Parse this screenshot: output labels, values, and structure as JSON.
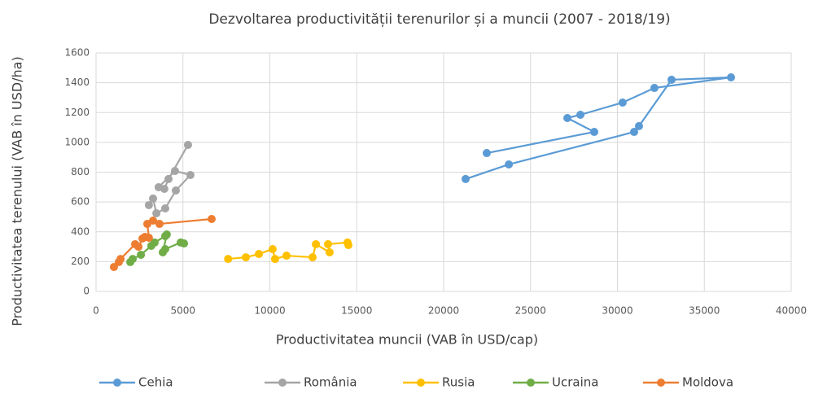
{
  "chart_data": {
    "type": "scatter",
    "title": "Dezvoltarea productivității terenurilor și a muncii (2007 - 2018/19)",
    "x_label": "Productivitatea muncii (VAB în USD/cap)",
    "y_label": "Productivitatea terenului (VAB în USD/ha)",
    "xlim": [
      0,
      40000
    ],
    "xticks": [
      0,
      5000,
      10000,
      15000,
      20000,
      25000,
      30000,
      35000,
      40000
    ],
    "ylim": [
      0,
      1600
    ],
    "yticks": [
      0,
      200,
      400,
      600,
      800,
      1000,
      1200,
      1400,
      1600
    ],
    "grid": true,
    "legend": "bottom",
    "series": [
      {
        "name": "Cehia",
        "color": "#5b9bd5",
        "x": [
          21265,
          23750,
          30960,
          31240,
          33115,
          36535,
          32130,
          30300,
          27870,
          27120,
          28665,
          22480
        ],
        "values": [
          754,
          852,
          1070,
          1109,
          1420,
          1436,
          1365,
          1267,
          1185,
          1163,
          1070,
          928
        ]
      },
      {
        "name": "România",
        "color": "#a5a5a5",
        "x": [
          3040,
          3280,
          3470,
          3980,
          4590,
          5430,
          4540,
          3600,
          3930,
          4170,
          5290
        ],
        "values": [
          579,
          623,
          524,
          557,
          677,
          781,
          808,
          699,
          688,
          754,
          983
        ]
      },
      {
        "name": "Rusia",
        "color": "#ffc000",
        "x": [
          7600,
          8620,
          9370,
          10160,
          10300,
          10960,
          12460,
          12650,
          13440,
          13350,
          14470,
          14520
        ],
        "values": [
          218,
          229,
          251,
          284,
          218,
          240,
          229,
          317,
          262,
          317,
          328,
          311
        ]
      },
      {
        "name": "Ucraina",
        "color": "#70ad47",
        "x": [
          1970,
          2110,
          2580,
          3180,
          3370,
          3980,
          4070,
          3840,
          3980,
          4870,
          5060
        ],
        "values": [
          197,
          218,
          246,
          306,
          328,
          371,
          382,
          262,
          284,
          328,
          322
        ]
      },
      {
        "name": "Moldova",
        "color": "#ed7d31",
        "x": [
          1030,
          1310,
          1410,
          2250,
          2440,
          2670,
          2810,
          3040,
          2950,
          3280,
          3650,
          6650
        ],
        "values": [
          164,
          197,
          218,
          317,
          300,
          355,
          366,
          360,
          453,
          475,
          453,
          486
        ]
      }
    ]
  }
}
